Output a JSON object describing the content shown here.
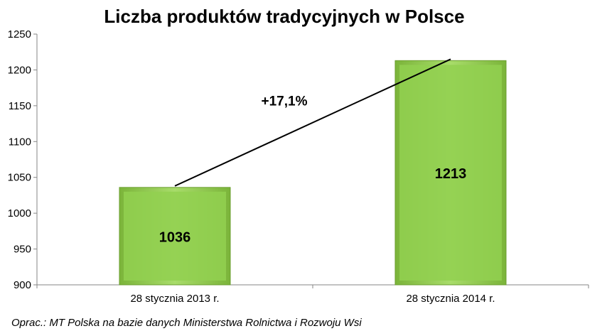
{
  "chart_data": {
    "type": "bar",
    "title": "Liczba produktów tradycyjnych w Polsce",
    "categories": [
      "28 stycznia 2013 r.",
      "28 stycznia 2014 r."
    ],
    "values": [
      1036,
      1213
    ],
    "ylim": [
      900,
      1250
    ],
    "yticks": [
      900,
      950,
      1000,
      1050,
      1100,
      1150,
      1200,
      1250
    ],
    "annotation": "+17,1%",
    "bar_color": "#92d050",
    "grid": false,
    "legend": "none"
  },
  "source_note": "Oprac.: MT Polska na bazie danych Ministerstwa Rolnictwa i Rozwoju Wsi"
}
